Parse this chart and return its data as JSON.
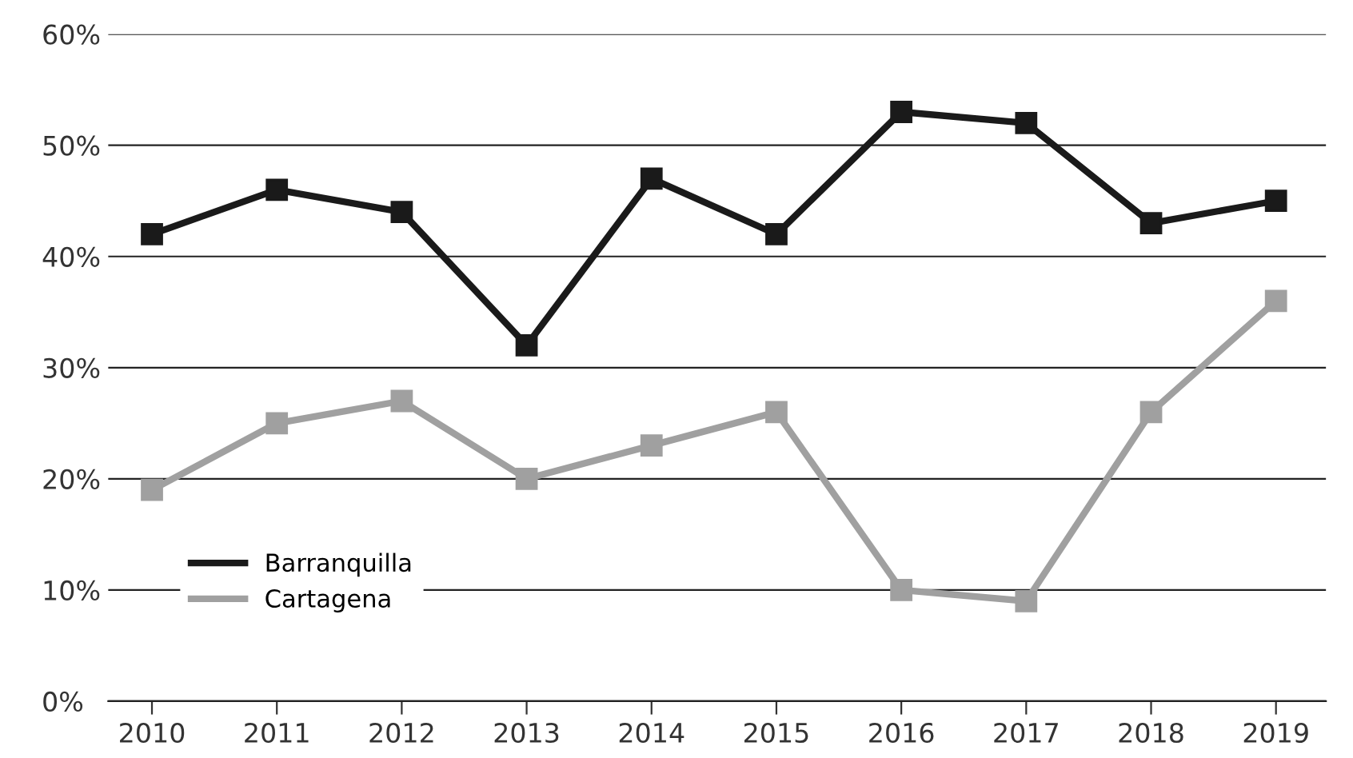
{
  "chart_data": {
    "type": "line",
    "categories": [
      "2010",
      "2011",
      "2012",
      "2013",
      "2014",
      "2015",
      "2016",
      "2017",
      "2018",
      "2019"
    ],
    "series": [
      {
        "name": "Barranquilla",
        "color": "#1a1a1a",
        "values": [
          42,
          46,
          44,
          32,
          47,
          42,
          53,
          52,
          43,
          45
        ]
      },
      {
        "name": "Cartagena",
        "color": "#a0a0a0",
        "values": [
          19,
          25,
          27,
          20,
          23,
          26,
          10,
          9,
          26,
          36
        ]
      }
    ],
    "ylim": [
      0,
      60
    ],
    "yticks": [
      {
        "value": 0,
        "label": "0%"
      },
      {
        "value": 10,
        "label": "10%"
      },
      {
        "value": 20,
        "label": "20%"
      },
      {
        "value": 30,
        "label": "30%"
      },
      {
        "value": 40,
        "label": "40%"
      },
      {
        "value": 50,
        "label": "50%"
      },
      {
        "value": 60,
        "label": "60%"
      }
    ],
    "grid": "y",
    "legend": "bottom left",
    "marker": "square",
    "line_style": "solid"
  }
}
